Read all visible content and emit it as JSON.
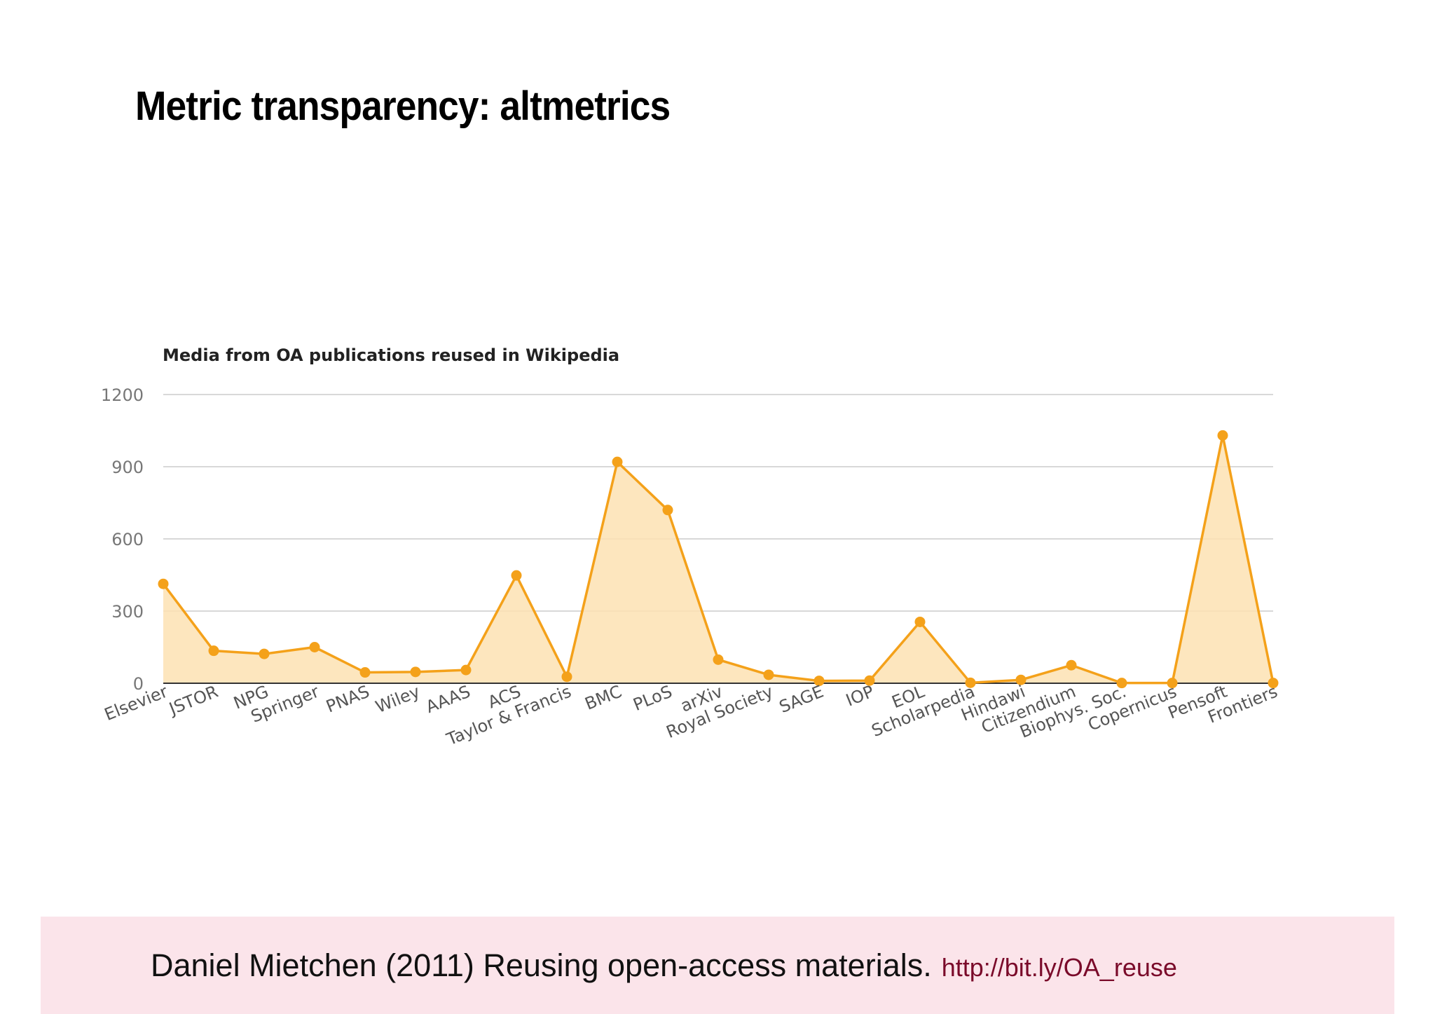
{
  "slide": {
    "title": "Metric transparency: altmetrics"
  },
  "footer": {
    "citation": "Daniel Mietchen (2011) Reusing open-access materials.",
    "link": "http://bit.ly/OA_reuse"
  },
  "chart_data": {
    "type": "area",
    "title": "Media from OA publications reused in Wikipedia",
    "xlabel": "",
    "ylabel": "",
    "ylim": [
      0,
      1200
    ],
    "yticks": [
      0,
      300,
      600,
      900,
      1200
    ],
    "grid": true,
    "legend": "none",
    "categories": [
      "Elsevier",
      "JSTOR",
      "NPG",
      "Springer",
      "PNAS",
      "Wiley",
      "AAAS",
      "ACS",
      "Taylor & Francis",
      "BMC",
      "PLoS",
      "arXiv",
      "Royal Society",
      "SAGE",
      "IOP",
      "EOL",
      "Scholarpedia",
      "Hindawi",
      "Citizendium",
      "Biophys. Soc.",
      "Copernicus",
      "Pensoft",
      "Frontiers"
    ],
    "series": [
      {
        "values": [
          413,
          135,
          122,
          150,
          45,
          47,
          55,
          448,
          27,
          920,
          720,
          98,
          35,
          10,
          11,
          255,
          2,
          14,
          75,
          1,
          1,
          1030,
          1
        ],
        "color": "#f4a11a",
        "fill": "#fde2b3"
      }
    ]
  }
}
